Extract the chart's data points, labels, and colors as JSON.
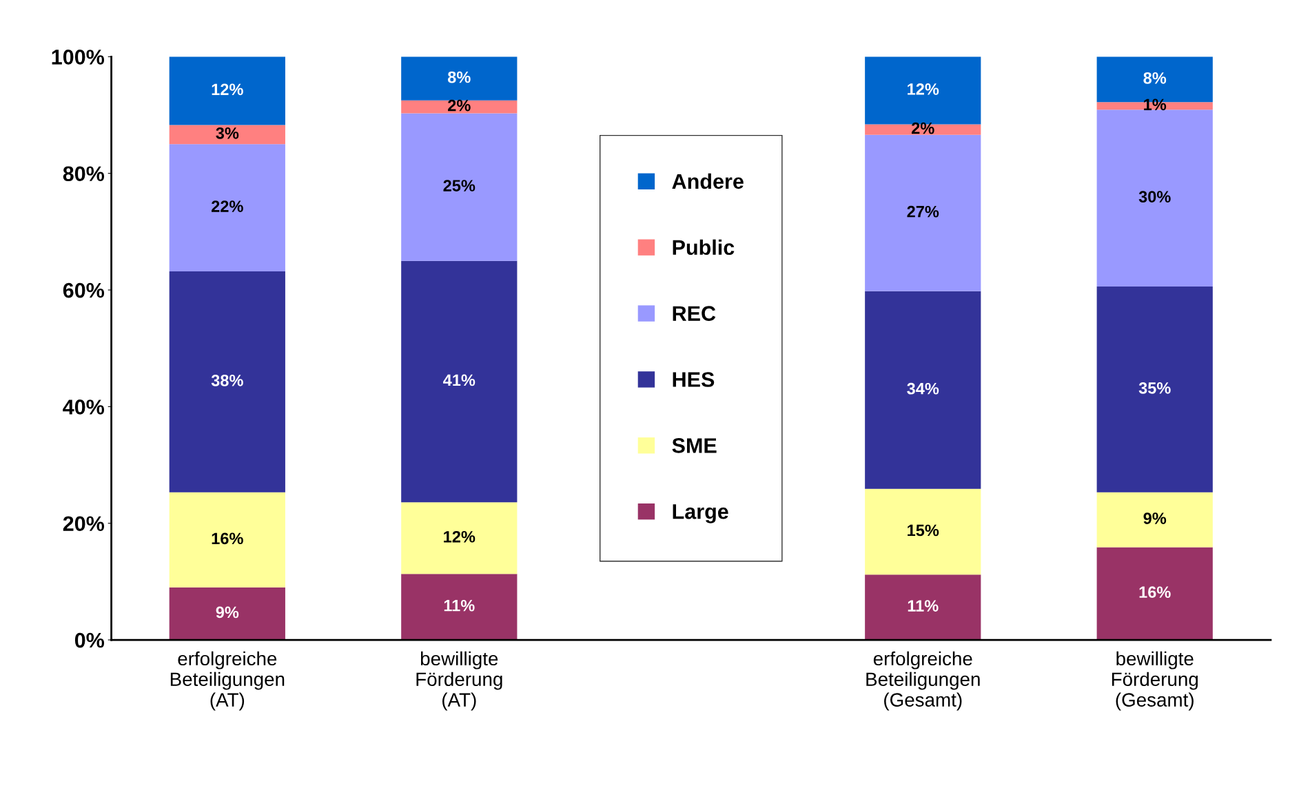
{
  "chart_data": {
    "type": "bar",
    "stacked": true,
    "categories": [
      "erfolgreiche\nBeteiligungen\n(AT)",
      "bewilligte\nFörderung\n(AT)",
      null,
      "erfolgreiche\nBeteiligungen\n(Gesamt)",
      "bewilligte\nFörderung\n(Gesamt)"
    ],
    "series": [
      {
        "name": "Large",
        "color": "#993366",
        "values": [
          9.0,
          11.3,
          null,
          11.2,
          15.9
        ],
        "value_labels": [
          "9%",
          "11%",
          null,
          "11%",
          "16%"
        ]
      },
      {
        "name": "SME",
        "color": "#ffff99",
        "values": [
          16.3,
          12.3,
          null,
          14.7,
          9.4
        ],
        "value_labels": [
          "16%",
          "12%",
          null,
          "15%",
          "9%"
        ]
      },
      {
        "name": "HES",
        "color": "#333399",
        "values": [
          37.9,
          41.4,
          null,
          33.9,
          35.3
        ],
        "value_labels": [
          "38%",
          "41%",
          null,
          "34%",
          "35%"
        ]
      },
      {
        "name": "REC",
        "color": "#9999ff",
        "values": [
          21.8,
          25.3,
          null,
          26.8,
          30.3
        ],
        "value_labels": [
          "22%",
          "25%",
          null,
          "27%",
          "30%"
        ]
      },
      {
        "name": "Public",
        "color": "#ff8080",
        "values": [
          3.3,
          2.2,
          null,
          1.8,
          1.3
        ],
        "value_labels": [
          "3%",
          "2%",
          null,
          "2%",
          "1%"
        ]
      },
      {
        "name": "Andere",
        "color": "#0066cc",
        "values": [
          11.7,
          7.5,
          null,
          11.6,
          7.8
        ],
        "value_labels": [
          "12%",
          "8%",
          null,
          "12%",
          "8%"
        ]
      }
    ],
    "ylim": [
      0,
      100
    ],
    "yticks": [
      {
        "value": 0,
        "label": "0%"
      },
      {
        "value": 20,
        "label": "20%"
      },
      {
        "value": 40,
        "label": "40%"
      },
      {
        "value": 60,
        "label": "60%"
      },
      {
        "value": 80,
        "label": "80%"
      },
      {
        "value": 100,
        "label": "100%"
      }
    ],
    "grid": false,
    "legend": "center"
  }
}
